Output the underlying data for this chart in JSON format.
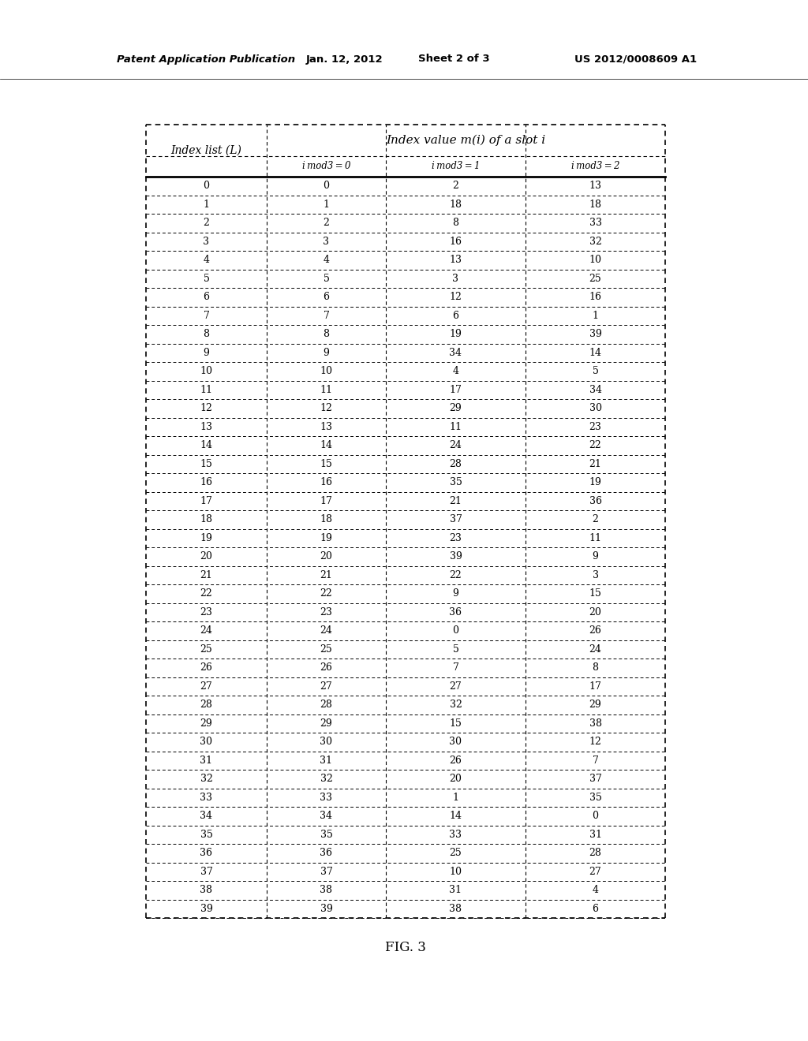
{
  "header_line1": "Patent Application Publication",
  "header_date": "Jan. 12, 2012",
  "header_sheet": "Sheet 2 of 3",
  "header_patent": "US 2012/0008609 A1",
  "figure_label": "FIG. 3",
  "col_header_0": "Index list (L)",
  "col_header_group": "Index value m(i) of a slot i",
  "col_header_1": "i mod3 = 0",
  "col_header_2": "i mod3 = 1",
  "col_header_3": "i mod3 = 2",
  "table_data": [
    [
      0,
      0,
      2,
      13
    ],
    [
      1,
      1,
      18,
      18
    ],
    [
      2,
      2,
      8,
      33
    ],
    [
      3,
      3,
      16,
      32
    ],
    [
      4,
      4,
      13,
      10
    ],
    [
      5,
      5,
      3,
      25
    ],
    [
      6,
      6,
      12,
      16
    ],
    [
      7,
      7,
      6,
      1
    ],
    [
      8,
      8,
      19,
      39
    ],
    [
      9,
      9,
      34,
      14
    ],
    [
      10,
      10,
      4,
      5
    ],
    [
      11,
      11,
      17,
      34
    ],
    [
      12,
      12,
      29,
      30
    ],
    [
      13,
      13,
      11,
      23
    ],
    [
      14,
      14,
      24,
      22
    ],
    [
      15,
      15,
      28,
      21
    ],
    [
      16,
      16,
      35,
      19
    ],
    [
      17,
      17,
      21,
      36
    ],
    [
      18,
      18,
      37,
      2
    ],
    [
      19,
      19,
      23,
      11
    ],
    [
      20,
      20,
      39,
      9
    ],
    [
      21,
      21,
      22,
      3
    ],
    [
      22,
      22,
      9,
      15
    ],
    [
      23,
      23,
      36,
      20
    ],
    [
      24,
      24,
      0,
      26
    ],
    [
      25,
      25,
      5,
      24
    ],
    [
      26,
      26,
      7,
      8
    ],
    [
      27,
      27,
      27,
      17
    ],
    [
      28,
      28,
      32,
      29
    ],
    [
      29,
      29,
      15,
      38
    ],
    [
      30,
      30,
      30,
      12
    ],
    [
      31,
      31,
      26,
      7
    ],
    [
      32,
      32,
      20,
      37
    ],
    [
      33,
      33,
      1,
      35
    ],
    [
      34,
      34,
      14,
      0
    ],
    [
      35,
      35,
      33,
      31
    ],
    [
      36,
      36,
      25,
      28
    ],
    [
      37,
      37,
      10,
      27
    ],
    [
      38,
      38,
      31,
      4
    ],
    [
      39,
      39,
      38,
      6
    ]
  ],
  "bg_color": "#ffffff",
  "text_color": "#000000"
}
